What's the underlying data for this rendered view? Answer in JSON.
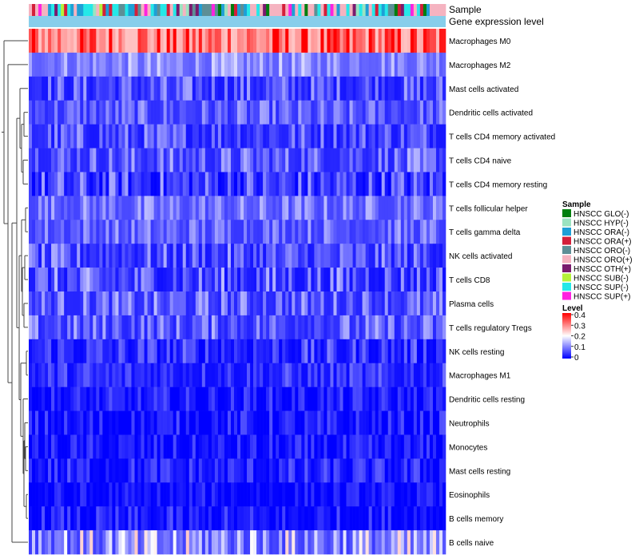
{
  "chart_data": {
    "type": "heatmap",
    "title": "",
    "annotation_tracks": [
      "Sample",
      "Gene expression level"
    ],
    "rows": [
      {
        "name": "Macrophages M0",
        "mean": 0.3,
        "spread": 0.1
      },
      {
        "name": "Macrophages M2",
        "mean": 0.1,
        "spread": 0.05
      },
      {
        "name": "Mast cells activated",
        "mean": 0.05,
        "spread": 0.06
      },
      {
        "name": "Dendritic cells activated",
        "mean": 0.06,
        "spread": 0.05
      },
      {
        "name": "T cells CD4 memory activated",
        "mean": 0.05,
        "spread": 0.06
      },
      {
        "name": "T cells CD4 naive",
        "mean": 0.06,
        "spread": 0.06
      },
      {
        "name": "T cells CD4 memory resting",
        "mean": 0.04,
        "spread": 0.07
      },
      {
        "name": "T cells follicular helper",
        "mean": 0.08,
        "spread": 0.05
      },
      {
        "name": "T cells gamma delta",
        "mean": 0.07,
        "spread": 0.05
      },
      {
        "name": "NK cells activated",
        "mean": 0.05,
        "spread": 0.06
      },
      {
        "name": "T cells CD8",
        "mean": 0.05,
        "spread": 0.07
      },
      {
        "name": "Plasma cells",
        "mean": 0.06,
        "spread": 0.06
      },
      {
        "name": "T cells regulatory  Tregs",
        "mean": 0.06,
        "spread": 0.06
      },
      {
        "name": "NK cells resting",
        "mean": 0.03,
        "spread": 0.05
      },
      {
        "name": "Macrophages M1",
        "mean": 0.03,
        "spread": 0.04
      },
      {
        "name": "Dendritic cells resting",
        "mean": 0.015,
        "spread": 0.035
      },
      {
        "name": "Neutrophils",
        "mean": 0.01,
        "spread": 0.04
      },
      {
        "name": "Monocytes",
        "mean": 0.01,
        "spread": 0.035
      },
      {
        "name": "Mast cells resting",
        "mean": 0.02,
        "spread": 0.04
      },
      {
        "name": "Eosinophils",
        "mean": 0.005,
        "spread": 0.03
      },
      {
        "name": "B cells memory",
        "mean": 0.01,
        "spread": 0.04
      },
      {
        "name": "B cells naive",
        "mean": 0.1,
        "spread": 0.1
      }
    ],
    "n_samples": 130,
    "sample_legend": {
      "title": "Sample",
      "items": [
        {
          "label": "HNSCC GLO(-)",
          "color": "#007f0e"
        },
        {
          "label": "HNSCC HYP(-)",
          "color": "#9be3c0"
        },
        {
          "label": "HNSCC ORA(-)",
          "color": "#1e9fd6"
        },
        {
          "label": "HNSCC ORA(+)",
          "color": "#d41f3a"
        },
        {
          "label": "HNSCC ORO(-)",
          "color": "#5d8f96"
        },
        {
          "label": "HNSCC ORO(+)",
          "color": "#f5b3c0"
        },
        {
          "label": "HNSCC OTH(+)",
          "color": "#7a1b6e"
        },
        {
          "label": "HNSCC SUB(-)",
          "color": "#b5f23a"
        },
        {
          "label": "HNSCC SUP(-)",
          "color": "#25e8e8"
        },
        {
          "label": "HNSCC SUP(+)",
          "color": "#ff22e0"
        }
      ]
    },
    "level_legend": {
      "title": "Level",
      "ticks": [
        "0.4",
        "0.3",
        "0.2",
        "0.1",
        "0"
      ],
      "range": [
        0,
        0.4
      ]
    },
    "gene_expression_track_color": "#87ceeb",
    "color_scale": {
      "low": "#0000ff",
      "mid": "#ffffff",
      "high": "#ff0000",
      "midpoint": 0.2
    }
  }
}
